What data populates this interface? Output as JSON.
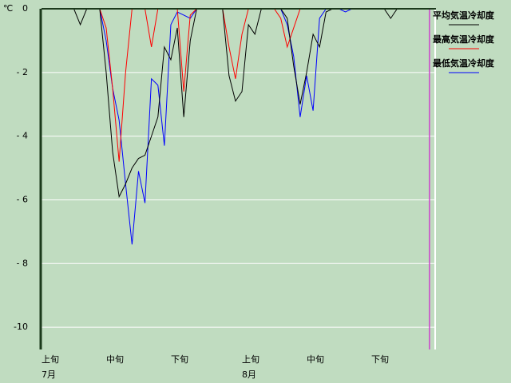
{
  "chart_data": {
    "type": "line",
    "y_unit": "℃",
    "categories": [
      "上旬",
      null,
      null,
      null,
      null,
      null,
      null,
      null,
      null,
      null,
      "中旬",
      null,
      null,
      null,
      null,
      null,
      null,
      null,
      null,
      null,
      "下旬",
      null,
      null,
      null,
      null,
      null,
      null,
      null,
      null,
      null,
      null,
      "上旬",
      null,
      null,
      null,
      null,
      null,
      null,
      null,
      null,
      null,
      "中旬",
      null,
      null,
      null,
      null,
      null,
      null,
      null,
      null,
      null,
      "下旬",
      null,
      null,
      null,
      null,
      null,
      null,
      null,
      null,
      null,
      null
    ],
    "months": [
      "7月",
      null,
      null,
      null,
      null,
      null,
      null,
      null,
      null,
      null,
      null,
      null,
      null,
      null,
      null,
      null,
      null,
      null,
      null,
      null,
      null,
      null,
      null,
      null,
      null,
      null,
      null,
      null,
      null,
      null,
      null,
      "8月",
      null,
      null,
      null,
      null,
      null,
      null,
      null,
      null,
      null,
      null,
      null,
      null,
      null,
      null,
      null,
      null,
      null,
      null,
      null,
      null,
      null,
      null,
      null,
      null,
      null,
      null,
      null,
      null,
      null,
      null
    ],
    "series": [
      {
        "name": "最低気温冷却度",
        "color": "#0000ff",
        "values": [
          0,
          0,
          0,
          0,
          0,
          0,
          0,
          0,
          0,
          0,
          -1.0,
          -2.5,
          -3.5,
          -5.5,
          -7.4,
          -5.1,
          -6.1,
          -2.2,
          -2.4,
          -4.3,
          -0.5,
          -0.1,
          -0.2,
          -0.3,
          0,
          0,
          0,
          0,
          0,
          0,
          0,
          0,
          0,
          0,
          0,
          0,
          0,
          0,
          -0.5,
          -1.5,
          -3.4,
          -2.1,
          -3.2,
          -0.3,
          0,
          0,
          0,
          -0.1,
          0,
          0,
          0,
          0,
          0,
          0,
          0,
          0,
          0,
          0,
          0,
          0,
          0,
          0
        ]
      },
      {
        "name": "最高気温冷却度",
        "color": "#ff0000",
        "values": [
          0,
          0,
          0,
          0,
          0,
          0,
          0,
          0,
          0,
          0,
          -0.6,
          -2.5,
          -4.8,
          -2.0,
          0,
          0,
          0,
          -1.2,
          0,
          0,
          0,
          0,
          -2.6,
          -0.2,
          0,
          0,
          0,
          0,
          0,
          -1.2,
          -2.2,
          -0.8,
          0,
          0,
          0,
          0,
          0,
          -0.3,
          -1.2,
          -0.6,
          0,
          0,
          0,
          0,
          0,
          0,
          0,
          0,
          0,
          0,
          0,
          0,
          0,
          0,
          0,
          0,
          0,
          0,
          0,
          0,
          0,
          0
        ]
      },
      {
        "name": "平均気温冷却度",
        "color": "#000000",
        "values": [
          0,
          0,
          0,
          0,
          0,
          0,
          -0.5,
          0,
          0,
          0,
          -2.0,
          -4.5,
          -5.9,
          -5.5,
          -5.0,
          -4.7,
          -4.6,
          -4.0,
          -3.4,
          -1.2,
          -1.6,
          -0.6,
          -3.4,
          -1.0,
          0,
          0,
          0,
          0,
          0,
          -2.1,
          -2.9,
          -2.6,
          -0.5,
          -0.8,
          0,
          0,
          0,
          0,
          -0.3,
          -1.8,
          -3.0,
          -2.0,
          -0.8,
          -1.2,
          -0.1,
          0,
          0,
          0,
          0,
          0,
          0,
          0,
          0,
          0,
          -0.3,
          0,
          0,
          0,
          0,
          0,
          0,
          0
        ]
      }
    ],
    "legend_order": [
      2,
      1,
      0
    ],
    "ylim": [
      -10.7,
      0
    ],
    "yticks": [
      0,
      {
        "value": -2,
        "label": "- 2"
      },
      {
        "value": -4,
        "label": "- 4"
      },
      {
        "value": -6,
        "label": "- 6"
      },
      {
        "value": -8,
        "label": "- 8"
      },
      {
        "value": -10,
        "label": "-10"
      }
    ],
    "grid": true,
    "legend": "right",
    "marker": {
      "index": 60,
      "color": "#cc44cc"
    }
  }
}
